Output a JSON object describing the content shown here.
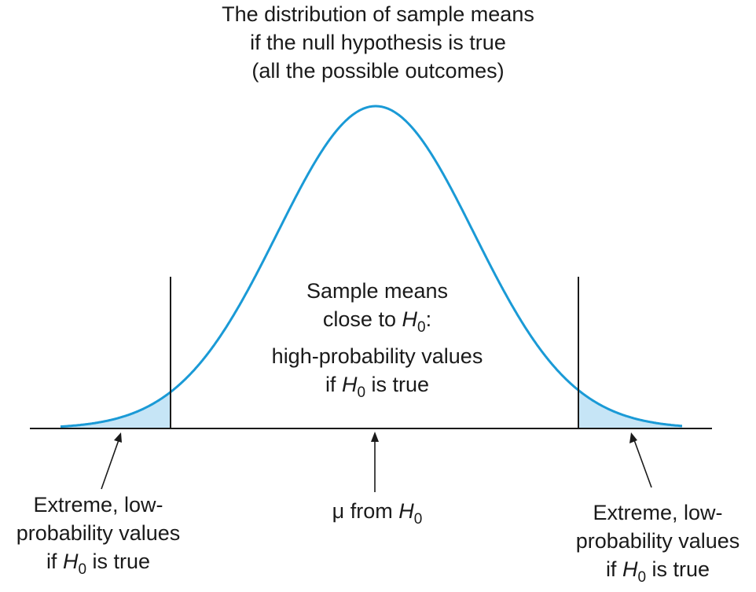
{
  "title": {
    "line1": "The distribution of sample means",
    "line2": "if the null hypothesis is true",
    "line3": "(all the possible outcomes)"
  },
  "center": {
    "line1": "Sample means",
    "line2_pre": "close to ",
    "h": "H",
    "h_sub": "0",
    "line2_post": ":",
    "line3": "high-probability values",
    "line4_pre": "if ",
    "line4_post": " is true"
  },
  "mu": {
    "pre": "μ from ",
    "h": "H",
    "h_sub": "0"
  },
  "left": {
    "line1": "Extreme, low-",
    "line2": "probability values",
    "line3_pre": "if ",
    "h": "H",
    "h_sub": "0",
    "line3_post": " is true"
  },
  "right": {
    "line1": "Extreme, low-",
    "line2": "probability values",
    "line3_pre": "if ",
    "h": "H",
    "h_sub": "0",
    "line3_post": " is true"
  },
  "colors": {
    "curve": "#1a9ad6",
    "tail_fill": "#c6e5f6",
    "ink": "#1a1a1a"
  }
}
